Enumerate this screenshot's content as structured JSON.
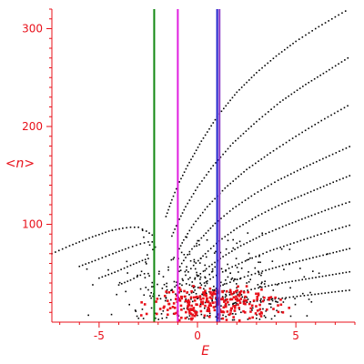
{
  "chart_data": {
    "type": "scatter",
    "title": "",
    "xlabel": "E",
    "ylabel": "<n>",
    "xlim": [
      -7.4,
      8.0
    ],
    "ylim": [
      0,
      320
    ],
    "x_ticks": [
      -5,
      0,
      5
    ],
    "y_ticks": [
      100,
      200,
      300
    ],
    "x_tick_labels": [
      "-5",
      "0",
      "5"
    ],
    "y_tick_labels": [
      "100",
      "200",
      "300"
    ],
    "grid": false,
    "legend": "none",
    "colors": {
      "axis": "#e8101a",
      "points": "#000000",
      "highlight": "#e8101a",
      "green_line": "#118811",
      "magenta_line": "#e020e0",
      "blue_line": "#2020cc",
      "purple_line": "#8c3cc8"
    },
    "vertical_lines": [
      {
        "x": -2.2,
        "color_key": "green_line"
      },
      {
        "x": -1.0,
        "color_key": "magenta_line"
      },
      {
        "x": 1.0,
        "color_key": "blue_line"
      },
      {
        "x": 1.12,
        "color_key": "purple_line"
      }
    ],
    "curves": [
      {
        "points": [
          [
            -7.4,
            70
          ],
          [
            -6.5,
            78
          ],
          [
            -5.5,
            86
          ],
          [
            -4.5,
            93
          ],
          [
            -3.8,
            96
          ],
          [
            -3.4,
            97
          ],
          [
            -3.0,
            97
          ],
          [
            -2.6,
            93
          ],
          [
            -2.3,
            89
          ],
          [
            -2.15,
            87
          ]
        ]
      },
      {
        "points": [
          [
            -6.0,
            57
          ],
          [
            -5.2,
            63
          ],
          [
            -4.3,
            70
          ],
          [
            -3.5,
            76
          ],
          [
            -2.9,
            80
          ],
          [
            -2.5,
            82
          ],
          [
            -2.3,
            82
          ],
          [
            -2.1,
            80
          ]
        ]
      },
      {
        "points": [
          [
            -5.0,
            45
          ],
          [
            -4.2,
            51
          ],
          [
            -3.4,
            58
          ],
          [
            -2.8,
            63
          ],
          [
            -2.5,
            65
          ],
          [
            -2.35,
            64
          ]
        ]
      },
      {
        "points": [
          [
            -4.0,
            38
          ],
          [
            -3.4,
            43
          ],
          [
            -2.9,
            48
          ],
          [
            -2.5,
            51
          ]
        ]
      },
      {
        "points": [
          [
            -2.2,
            27
          ],
          [
            -2.5,
            33
          ],
          [
            -2.75,
            38
          ]
        ]
      },
      {
        "points": [
          [
            -1.6,
            108
          ],
          [
            -1.3,
            125
          ],
          [
            -1.0,
            140
          ],
          [
            -0.5,
            160
          ],
          [
            0.2,
            185
          ],
          [
            1.0,
            210
          ],
          [
            2.0,
            235
          ],
          [
            3.0,
            255
          ],
          [
            4.0,
            272
          ],
          [
            5.0,
            287
          ],
          [
            6.0,
            300
          ],
          [
            7.0,
            312
          ],
          [
            7.7,
            320
          ]
        ]
      },
      {
        "points": [
          [
            -1.3,
            88
          ],
          [
            -1.0,
            102
          ],
          [
            -0.6,
            118
          ],
          [
            0.0,
            138
          ],
          [
            0.8,
            160
          ],
          [
            1.8,
            183
          ],
          [
            3.0,
            205
          ],
          [
            4.2,
            225
          ],
          [
            5.5,
            243
          ],
          [
            6.7,
            258
          ],
          [
            7.8,
            272
          ]
        ]
      },
      {
        "points": [
          [
            -1.0,
            72
          ],
          [
            -0.7,
            84
          ],
          [
            -0.2,
            100
          ],
          [
            0.5,
            118
          ],
          [
            1.4,
            137
          ],
          [
            2.5,
            156
          ],
          [
            3.7,
            173
          ],
          [
            5.0,
            190
          ],
          [
            6.3,
            206
          ],
          [
            7.8,
            223
          ]
        ]
      },
      {
        "points": [
          [
            -0.8,
            60
          ],
          [
            -0.4,
            72
          ],
          [
            0.2,
            86
          ],
          [
            0.9,
            101
          ],
          [
            1.8,
            116
          ],
          [
            2.9,
            131
          ],
          [
            4.1,
            145
          ],
          [
            5.4,
            158
          ],
          [
            6.7,
            170
          ],
          [
            7.9,
            181
          ]
        ]
      },
      {
        "points": [
          [
            -0.6,
            48
          ],
          [
            -0.2,
            58
          ],
          [
            0.4,
            70
          ],
          [
            1.1,
            83
          ],
          [
            2.0,
            96
          ],
          [
            3.1,
            109
          ],
          [
            4.3,
            121
          ],
          [
            5.6,
            132
          ],
          [
            6.9,
            143
          ],
          [
            7.9,
            151
          ]
        ]
      },
      {
        "points": [
          [
            -0.4,
            38
          ],
          [
            0.0,
            47
          ],
          [
            0.6,
            57
          ],
          [
            1.3,
            67
          ],
          [
            2.2,
            78
          ],
          [
            3.3,
            89
          ],
          [
            4.5,
            99
          ],
          [
            5.8,
            109
          ],
          [
            7.0,
            118
          ],
          [
            7.9,
            124
          ]
        ]
      },
      {
        "points": [
          [
            -0.3,
            30
          ],
          [
            0.2,
            38
          ],
          [
            0.8,
            46
          ],
          [
            1.6,
            55
          ],
          [
            2.6,
            64
          ],
          [
            3.7,
            73
          ],
          [
            4.9,
            81
          ],
          [
            6.1,
            89
          ],
          [
            7.2,
            96
          ],
          [
            7.9,
            100
          ]
        ]
      },
      {
        "points": [
          [
            0.0,
            24
          ],
          [
            0.6,
            31
          ],
          [
            1.3,
            38
          ],
          [
            2.2,
            45
          ],
          [
            3.3,
            52
          ],
          [
            4.5,
            59
          ],
          [
            5.7,
            65
          ],
          [
            6.9,
            71
          ],
          [
            7.9,
            76
          ]
        ]
      },
      {
        "points": [
          [
            0.4,
            20
          ],
          [
            1.1,
            25
          ],
          [
            2.0,
            30
          ],
          [
            3.1,
            35
          ],
          [
            4.3,
            40
          ],
          [
            5.5,
            44
          ],
          [
            6.7,
            48
          ],
          [
            7.9,
            52
          ]
        ]
      },
      {
        "points": [
          [
            1.0,
            16
          ],
          [
            2.0,
            19
          ],
          [
            3.2,
            22
          ],
          [
            4.5,
            25
          ],
          [
            5.8,
            28
          ],
          [
            7.0,
            31
          ],
          [
            7.9,
            33
          ]
        ]
      }
    ],
    "scatter_clouds": [
      {
        "center": [
          0.7,
          30
        ],
        "spread": [
          2.4,
          24
        ],
        "count": 320,
        "color_key": "points"
      }
    ],
    "highlight_points": [
      {
        "center": [
          0.9,
          18
        ],
        "spread": [
          1.5,
          9
        ],
        "count": 260,
        "color_key": "highlight"
      }
    ]
  }
}
